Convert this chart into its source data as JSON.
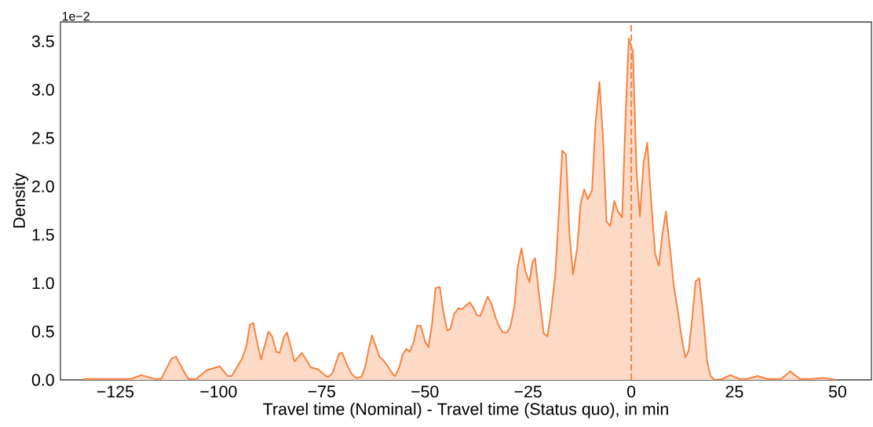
{
  "chart_data": {
    "type": "area",
    "xlabel": "Travel time (Nominal) - Travel time (Status quo), in min",
    "ylabel": "Density",
    "annotations": [
      "1e−2"
    ],
    "x": [
      -132.7,
      -126.3,
      -121.2,
      -118.7,
      -115.5,
      -113.9,
      -111.4,
      -110.3,
      -107.9,
      -107.3,
      -105.4,
      -102.9,
      -101.3,
      -99.7,
      -97.8,
      -96.8,
      -94.3,
      -93.3,
      -92.4,
      -91.6,
      -90.5,
      -89.7,
      -87.9,
      -87.0,
      -86.0,
      -85.2,
      -84.1,
      -83.4,
      -81.6,
      -79.8,
      -77.6,
      -75.9,
      -74.0,
      -73.4,
      -72.4,
      -70.8,
      -70.0,
      -68.9,
      -67.7,
      -66.6,
      -65.4,
      -64.5,
      -63.5,
      -62.8,
      -61.0,
      -60.0,
      -59.1,
      -57.8,
      -57.2,
      -56.2,
      -55.4,
      -54.5,
      -53.7,
      -52.7,
      -51.9,
      -51.0,
      -49.9,
      -49.1,
      -48.3,
      -47.4,
      -46.4,
      -45.5,
      -44.6,
      -43.8,
      -42.9,
      -41.9,
      -41.0,
      -40.0,
      -39.1,
      -38.3,
      -37.4,
      -36.6,
      -35.6,
      -34.8,
      -33.9,
      -32.9,
      -32.1,
      -31.1,
      -30.1,
      -29.3,
      -28.3,
      -27.5,
      -26.6,
      -25.6,
      -24.7,
      -23.9,
      -23.3,
      -22.3,
      -21.2,
      -20.3,
      -19.5,
      -18.4,
      -17.6,
      -16.7,
      -15.8,
      -15.0,
      -14.1,
      -13.1,
      -12.3,
      -11.4,
      -10.5,
      -9.5,
      -8.7,
      -7.7,
      -6.8,
      -6.0,
      -5.1,
      -4.1,
      -3.2,
      -2.2,
      -1.4,
      -0.6,
      0.4,
      1.3,
      2.1,
      3.0,
      3.9,
      4.8,
      5.8,
      6.7,
      7.6,
      8.4,
      9.4,
      10.3,
      11.3,
      12.2,
      13.1,
      13.9,
      14.8,
      15.6,
      16.5,
      17.5,
      18.4,
      19.2,
      20.2,
      22.1,
      24.0,
      26.2,
      28.1,
      30.6,
      32.9,
      36.3,
      38.6,
      40.8,
      43.6,
      46.5,
      49.7
    ],
    "series": [
      {
        "color": "#f58442",
        "values": [
          0.01,
          0.01,
          0.01,
          0.05,
          0.01,
          0.01,
          0.22,
          0.24,
          0.05,
          0.01,
          0.01,
          0.1,
          0.12,
          0.14,
          0.04,
          0.04,
          0.22,
          0.34,
          0.57,
          0.59,
          0.36,
          0.21,
          0.5,
          0.45,
          0.29,
          0.28,
          0.45,
          0.49,
          0.19,
          0.28,
          0.13,
          0.11,
          0.04,
          0.03,
          0.07,
          0.27,
          0.28,
          0.16,
          0.06,
          0.02,
          0.03,
          0.13,
          0.34,
          0.46,
          0.24,
          0.2,
          0.15,
          0.06,
          0.04,
          0.13,
          0.26,
          0.32,
          0.29,
          0.39,
          0.56,
          0.56,
          0.39,
          0.34,
          0.57,
          0.95,
          0.96,
          0.7,
          0.51,
          0.53,
          0.68,
          0.74,
          0.73,
          0.77,
          0.8,
          0.75,
          0.67,
          0.66,
          0.77,
          0.86,
          0.79,
          0.65,
          0.56,
          0.49,
          0.49,
          0.55,
          0.76,
          1.17,
          1.36,
          1.12,
          1.01,
          1.22,
          1.26,
          0.87,
          0.48,
          0.45,
          0.68,
          1.09,
          1.68,
          2.37,
          2.33,
          1.52,
          1.09,
          1.36,
          1.81,
          1.97,
          1.87,
          1.96,
          2.62,
          3.08,
          2.47,
          1.64,
          1.59,
          1.85,
          1.74,
          1.68,
          2.69,
          3.53,
          3.4,
          2.14,
          1.69,
          2.25,
          2.45,
          1.87,
          1.3,
          1.18,
          1.52,
          1.74,
          1.36,
          0.98,
          0.71,
          0.44,
          0.23,
          0.3,
          0.65,
          1.02,
          1.05,
          0.63,
          0.19,
          0.04,
          0.0,
          0.01,
          0.05,
          0.01,
          0.01,
          0.04,
          0.01,
          0.01,
          0.09,
          0.01,
          0.01,
          0.02,
          0.0
        ]
      }
    ],
    "xlim": [
      -138.3,
      58.2
    ],
    "ylim": [
      0,
      3.7
    ],
    "xticks": [
      {
        "value": -125,
        "label": "−125"
      },
      {
        "value": -100,
        "label": "−100"
      },
      {
        "value": -75,
        "label": "−75"
      },
      {
        "value": -50,
        "label": "−50"
      },
      {
        "value": -25,
        "label": "−25"
      },
      0,
      25,
      50
    ],
    "yticks": [
      {
        "value": 0,
        "label": "0.0"
      },
      0.5,
      {
        "value": 1,
        "label": "1.0"
      },
      1.5,
      {
        "value": 2,
        "label": "2.0"
      },
      2.5,
      {
        "value": 3,
        "label": "3.0"
      },
      3.5
    ],
    "ref_lines": [
      {
        "axis": "x",
        "value": 0,
        "color": "#f58442",
        "line_style": "dashed"
      }
    ]
  }
}
